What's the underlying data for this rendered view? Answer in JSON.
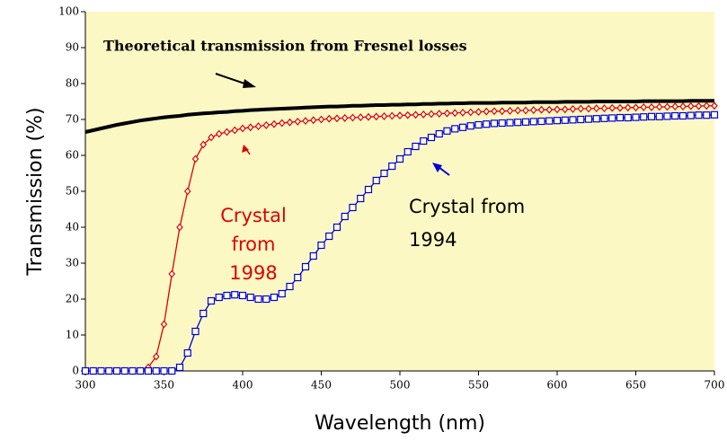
{
  "chart_data": {
    "type": "line",
    "x_label": "Wavelength (nm)",
    "y_label": "Transmission (%)",
    "x": [
      300,
      305,
      310,
      315,
      320,
      325,
      330,
      335,
      340,
      345,
      350,
      355,
      360,
      365,
      370,
      375,
      380,
      385,
      390,
      395,
      400,
      405,
      410,
      415,
      420,
      425,
      430,
      435,
      440,
      445,
      450,
      455,
      460,
      465,
      470,
      475,
      480,
      485,
      490,
      495,
      500,
      505,
      510,
      515,
      520,
      525,
      530,
      535,
      540,
      545,
      550,
      555,
      560,
      565,
      570,
      575,
      580,
      585,
      590,
      595,
      600,
      605,
      610,
      615,
      620,
      625,
      630,
      635,
      640,
      645,
      650,
      655,
      660,
      665,
      670,
      675,
      680,
      685,
      690,
      695,
      700
    ],
    "series": [
      {
        "color": "#000000",
        "marker": "none",
        "values": [
          66.5,
          67,
          67.5,
          68,
          68.5,
          68.9,
          69.3,
          69.7,
          70,
          70.3,
          70.6,
          70.8,
          71,
          71.3,
          71.5,
          71.7,
          71.8,
          72,
          72.1,
          72.3,
          72.4,
          72.6,
          72.7,
          72.8,
          72.9,
          73,
          73.1,
          73.2,
          73.3,
          73.4,
          73.5,
          73.6,
          73.6,
          73.7,
          73.8,
          73.8,
          73.9,
          74,
          74,
          74.1,
          74.1,
          74.2,
          74.2,
          74.3,
          74.3,
          74.4,
          74.4,
          74.5,
          74.5,
          74.6,
          74.6,
          74.6,
          74.6,
          74.7,
          74.7,
          74.7,
          74.7,
          74.8,
          74.8,
          74.8,
          74.8,
          74.9,
          74.9,
          74.9,
          74.9,
          75,
          75,
          75,
          75,
          75,
          75,
          75.1,
          75.1,
          75.1,
          75.1,
          75.1,
          75.1,
          75.2,
          75.2,
          75.2,
          75.2
        ]
      },
      {
        "color": "#e00000",
        "marker": "diamond",
        "values": [
          0,
          0,
          0,
          0,
          0,
          0,
          0,
          0,
          1,
          4,
          13,
          27,
          40,
          50,
          59,
          63,
          65,
          66,
          66.5,
          67,
          67.5,
          67.8,
          68.1,
          68.4,
          68.7,
          69,
          69.2,
          69.4,
          69.6,
          69.8,
          70,
          70.2,
          70.3,
          70.4,
          70.5,
          70.6,
          70.7,
          70.8,
          70.9,
          71,
          71.1,
          71.2,
          71.3,
          71.4,
          71.5,
          71.6,
          71.7,
          71.8,
          71.9,
          72,
          72.1,
          72.2,
          72.3,
          72.3,
          72.4,
          72.5,
          72.5,
          72.6,
          72.7,
          72.7,
          72.8,
          72.8,
          72.9,
          73,
          73,
          73.1,
          73.1,
          73.2,
          73.2,
          73.3,
          73.3,
          73.4,
          73.4,
          73.5,
          73.5,
          73.6,
          73.6,
          73.7,
          73.7,
          73.8,
          73.8
        ]
      },
      {
        "color": "#0000d0",
        "marker": "square",
        "values": [
          0,
          0,
          0,
          0,
          0,
          0,
          0,
          0,
          0,
          0,
          0,
          0,
          1,
          5,
          11,
          16,
          19.5,
          20.5,
          21,
          21.2,
          21,
          20.5,
          20,
          20,
          20.5,
          21.5,
          23.5,
          26,
          29,
          32,
          35,
          37.5,
          40,
          43,
          45.5,
          48,
          50.5,
          53,
          55,
          57,
          59,
          61,
          62.5,
          64,
          65,
          66,
          66.8,
          67.4,
          67.8,
          68.2,
          68.5,
          68.7,
          68.9,
          69,
          69.1,
          69.2,
          69.3,
          69.4,
          69.5,
          69.6,
          69.7,
          69.8,
          69.9,
          70,
          70.1,
          70.2,
          70.3,
          70.4,
          70.5,
          70.5,
          70.6,
          70.7,
          70.8,
          70.8,
          70.9,
          71,
          71,
          71.1,
          71.2,
          71.2,
          71.3
        ]
      }
    ],
    "xlim": [
      300,
      700
    ],
    "ylim": [
      0,
      100
    ],
    "xticks": [
      300,
      350,
      400,
      450,
      500,
      550,
      600,
      650,
      700
    ],
    "yticks": [
      0,
      10,
      20,
      30,
      40,
      50,
      60,
      70,
      80,
      90,
      100
    ],
    "background": "#fbf8c4",
    "annotations": [
      {
        "lines": [
          "Theoretical transmission from Fresnel losses"
        ],
        "color": "#000000"
      },
      {
        "lines": [
          "Crystal",
          "from",
          "1998"
        ],
        "color": "#e00000"
      },
      {
        "lines": [
          "Crystal from",
          "1994"
        ],
        "color": "#000000"
      }
    ]
  }
}
